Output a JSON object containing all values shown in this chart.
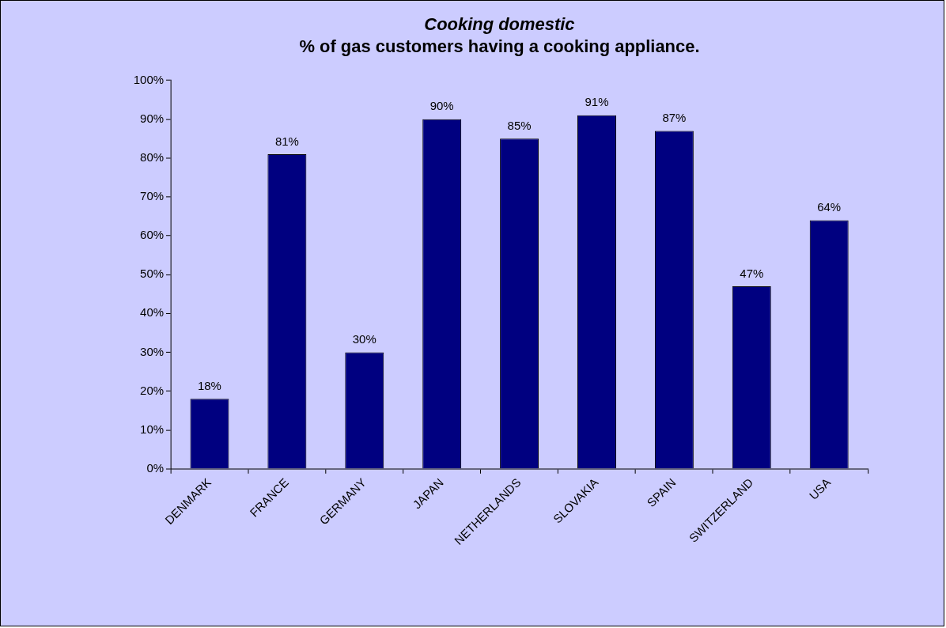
{
  "chart_data": {
    "type": "bar",
    "title": "Cooking domestic",
    "subtitle": "% of gas customers having a cooking appliance.",
    "categories": [
      "DENMARK",
      "FRANCE",
      "GERMANY",
      "JAPAN",
      "NETHERLANDS",
      "SLOVAKIA",
      "SPAIN",
      "SWITZERLAND",
      "USA"
    ],
    "values": [
      18,
      81,
      30,
      90,
      85,
      91,
      87,
      47,
      64
    ],
    "value_labels": [
      "18%",
      "81%",
      "30%",
      "90%",
      "85%",
      "91%",
      "87%",
      "47%",
      "64%"
    ],
    "color": "#000080",
    "ylim": [
      0,
      100
    ],
    "yticks": [
      {
        "value": 0,
        "label": "0%"
      },
      {
        "value": 10,
        "label": "10%"
      },
      {
        "value": 20,
        "label": "20%"
      },
      {
        "value": 30,
        "label": "30%"
      },
      {
        "value": 40,
        "label": "40%"
      },
      {
        "value": 50,
        "label": "50%"
      },
      {
        "value": 60,
        "label": "60%"
      },
      {
        "value": 70,
        "label": "70%"
      },
      {
        "value": 80,
        "label": "80%"
      },
      {
        "value": 90,
        "label": "90%"
      },
      {
        "value": 100,
        "label": "100%"
      }
    ],
    "grid": false,
    "legend": false
  }
}
